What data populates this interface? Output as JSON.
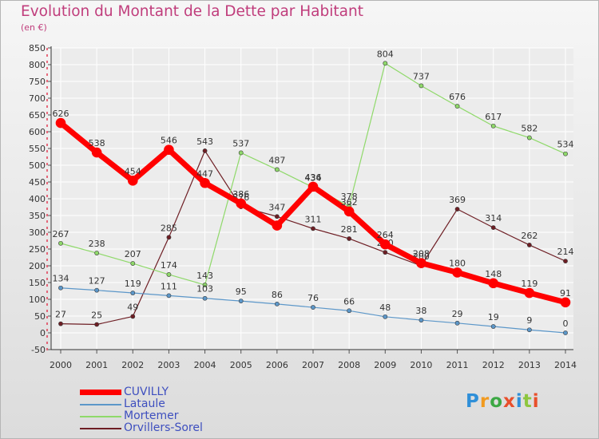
{
  "title": "Evolution du Montant de la Dette par Habitant",
  "subtitle": "(en €)",
  "logo": "Proxiti",
  "chart_data": {
    "type": "line",
    "x": [
      "2000",
      "2001",
      "2002",
      "2003",
      "2004",
      "2005",
      "2006",
      "2007",
      "2008",
      "2009",
      "2010",
      "2011",
      "2012",
      "2013",
      "2014"
    ],
    "ylim": [
      -50,
      850
    ],
    "yticks": [
      -50,
      0,
      50,
      100,
      150,
      200,
      250,
      300,
      350,
      400,
      450,
      500,
      550,
      600,
      650,
      700,
      750,
      800,
      850
    ],
    "grid": true,
    "legend_position": "bottom-left",
    "series": [
      {
        "name": "Orvillers-Sorel",
        "color": "#6e1e24",
        "width": 1.2,
        "marker": 2.6,
        "values": [
          27,
          25,
          49,
          285,
          543,
          376,
          347,
          311,
          281,
          240,
          200,
          369,
          314,
          262,
          214
        ]
      },
      {
        "name": "Mortemer",
        "color": "#8fd96a",
        "width": 1.2,
        "marker": 2.6,
        "values": [
          267,
          238,
          207,
          174,
          143,
          537,
          487,
          434,
          378,
          804,
          737,
          676,
          617,
          582,
          534
        ]
      },
      {
        "name": "Lataule",
        "color": "#5c97c9",
        "width": 1.2,
        "marker": 2.6,
        "values": [
          134,
          127,
          119,
          111,
          103,
          95,
          86,
          76,
          66,
          48,
          38,
          29,
          19,
          9,
          0
        ]
      },
      {
        "name": "CUVILLY",
        "color": "#ff0000",
        "width": 7,
        "marker": 6,
        "values": [
          626,
          538,
          454,
          546,
          447,
          386,
          320,
          436,
          362,
          264,
          208,
          180,
          148,
          119,
          91
        ],
        "labels": [
          "626",
          "538",
          "454",
          "546",
          "447",
          "386",
          "",
          "436",
          "362",
          "264",
          "208",
          "180",
          "148",
          "119",
          "91"
        ]
      }
    ],
    "legend": [
      "CUVILLY",
      "Lataule",
      "Mortemer",
      "Orvillers-Sorel"
    ]
  }
}
